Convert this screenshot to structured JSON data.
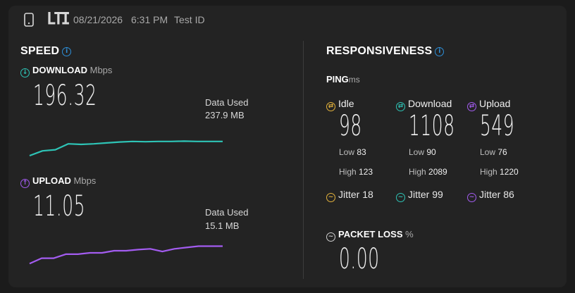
{
  "topbar": {
    "logo_text": "LTI",
    "date": "08/21/2026",
    "time": "6:31 PM",
    "test_id": "Test ID"
  },
  "speed": {
    "title": "SPEED",
    "download": {
      "label": "DOWNLOAD",
      "unit": "Mbps",
      "value": "196.32",
      "data_used_label": "Data Used",
      "data_used_value": "237.9 MB",
      "color": "#2ec4b6",
      "trend": [
        0.12,
        0.28,
        0.32,
        0.52,
        0.5,
        0.52,
        0.55,
        0.58,
        0.6,
        0.59,
        0.6,
        0.6,
        0.61,
        0.6,
        0.6,
        0.6
      ]
    },
    "upload": {
      "label": "UPLOAD",
      "unit": "Mbps",
      "value": "11.05",
      "data_used_label": "Data Used",
      "data_used_value": "15.1 MB",
      "color": "#a35cf0",
      "trend": [
        0.1,
        0.3,
        0.3,
        0.45,
        0.45,
        0.5,
        0.5,
        0.58,
        0.58,
        0.62,
        0.65,
        0.55,
        0.65,
        0.7,
        0.75,
        0.75,
        0.75
      ]
    }
  },
  "responsiveness": {
    "title": "RESPONSIVENESS",
    "ping_label": "PING",
    "ping_unit": "ms",
    "idle": {
      "label": "Idle",
      "value": "98",
      "low_label": "Low",
      "low": "83",
      "high_label": "High",
      "high": "123",
      "jitter_label": "Jitter",
      "jitter": "18",
      "color": "#e3b23c"
    },
    "download": {
      "label": "Download",
      "value": "1108",
      "low_label": "Low",
      "low": "90",
      "high_label": "High",
      "high": "2089",
      "jitter_label": "Jitter",
      "jitter": "99",
      "color": "#2ec4b6"
    },
    "upload": {
      "label": "Upload",
      "value": "549",
      "low_label": "Low",
      "low": "76",
      "high_label": "High",
      "high": "1220",
      "jitter_label": "Jitter",
      "jitter": "86",
      "color": "#a35cf0"
    },
    "packet_loss": {
      "label": "PACKET LOSS",
      "unit": "%",
      "value": "0.00"
    }
  },
  "icons": {
    "phone": "phone-icon",
    "info": "info-icon",
    "download": "arrow-down-circle-icon",
    "upload": "arrow-up-circle-icon",
    "ping": "swap-circle-icon",
    "jitter": "wave-circle-icon",
    "packet_loss": "minus-wave-circle-icon"
  }
}
